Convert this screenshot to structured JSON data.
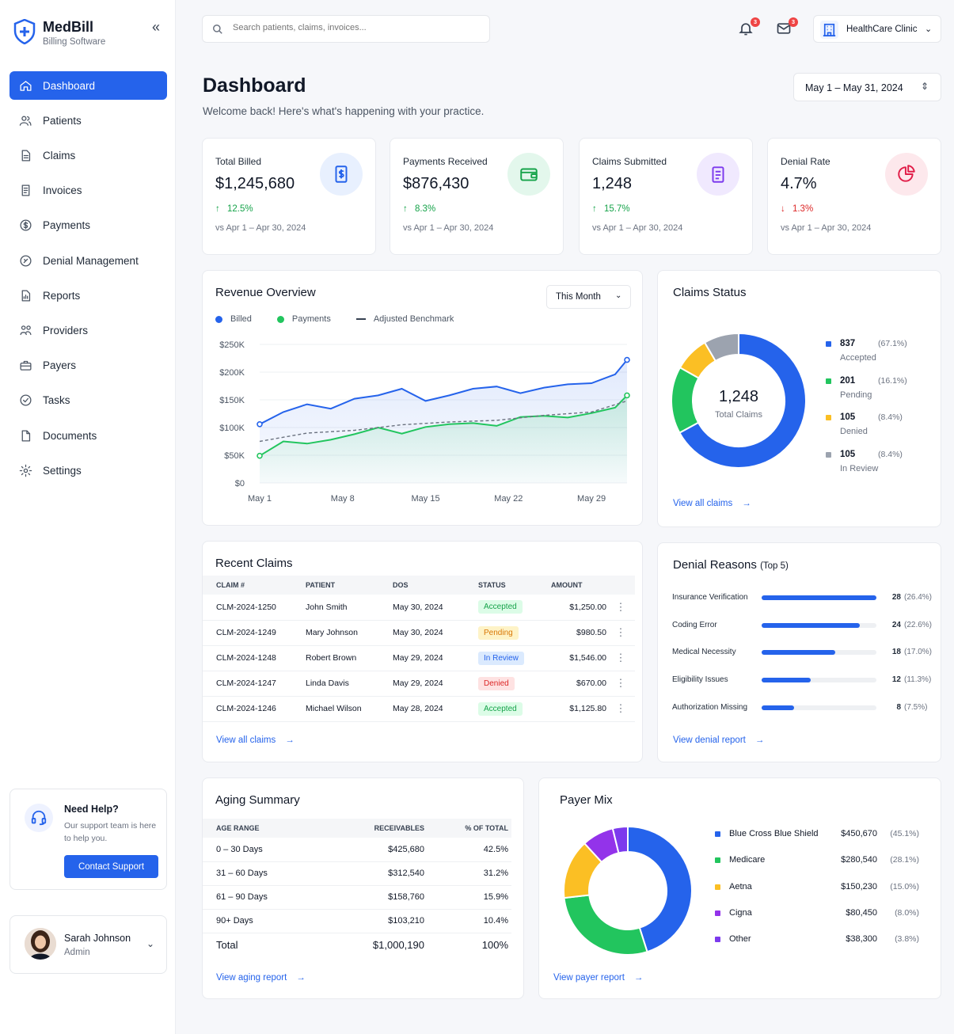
{
  "brand": {
    "name": "MedBill",
    "subtitle": "Billing Software"
  },
  "sidebar": {
    "items": [
      {
        "label": "Dashboard",
        "icon": "home-icon",
        "active": true
      },
      {
        "label": "Patients",
        "icon": "users-icon"
      },
      {
        "label": "Claims",
        "icon": "file-icon"
      },
      {
        "label": "Invoices",
        "icon": "invoice-icon"
      },
      {
        "label": "Payments",
        "icon": "dollar-icon"
      },
      {
        "label": "Denial Management",
        "icon": "x-circle-icon"
      },
      {
        "label": "Reports",
        "icon": "report-icon"
      },
      {
        "label": "Providers",
        "icon": "providers-icon"
      },
      {
        "label": "Payers",
        "icon": "briefcase-icon"
      },
      {
        "label": "Tasks",
        "icon": "check-circle-icon"
      },
      {
        "label": "Documents",
        "icon": "document-icon"
      },
      {
        "label": "Settings",
        "icon": "gear-icon"
      }
    ],
    "help": {
      "title": "Need Help?",
      "text": "Our support team is here to help you.",
      "button": "Contact Support"
    },
    "user": {
      "name": "Sarah Johnson",
      "role": "Admin"
    }
  },
  "topbar": {
    "search_placeholder": "Search patients, claims, invoices...",
    "notifications_count": "3",
    "messages_count": "3",
    "clinic": "HealthCare Clinic"
  },
  "header": {
    "title": "Dashboard",
    "subtitle": "Welcome back! Here's what's happening with your practice.",
    "date_range": "May 1 – May 31, 2024"
  },
  "kpis": [
    {
      "label": "Total Billed",
      "value": "$1,245,680",
      "delta": "12.5%",
      "direction": "up",
      "comparison": "vs Apr 1 – Apr 30, 2024",
      "color": "#2563eb",
      "bg": "#e8f0fe",
      "icon": "dollar-doc-icon"
    },
    {
      "label": "Payments Received",
      "value": "$876,430",
      "delta": "8.3%",
      "direction": "up",
      "comparison": "vs Apr 1 – Apr 30, 2024",
      "color": "#16a34a",
      "bg": "#e3f7ec",
      "icon": "wallet-icon"
    },
    {
      "label": "Claims Submitted",
      "value": "1,248",
      "delta": "15.7%",
      "direction": "up",
      "comparison": "vs Apr 1 – Apr 30, 2024",
      "color": "#7c3aed",
      "bg": "#f0e9fe",
      "icon": "clipboard-icon"
    },
    {
      "label": "Denial Rate",
      "value": "4.7%",
      "delta": "1.3%",
      "direction": "down",
      "comparison": "vs Apr 1 – Apr 30, 2024",
      "color": "#e11d48",
      "bg": "#fde8ec",
      "icon": "pie-icon"
    }
  ],
  "revenue": {
    "title": "Revenue Overview",
    "period": "This Month",
    "legend": {
      "billed": "Billed",
      "payments": "Payments",
      "benchmark": "Adjusted Benchmark"
    },
    "chart_data": {
      "type": "line",
      "ylim": [
        0,
        250000
      ],
      "y_ticks": [
        "$0",
        "$50K",
        "$100K",
        "$150K",
        "$200K",
        "$250K"
      ],
      "x_ticks": [
        "May 1",
        "May 8",
        "May 15",
        "May 22",
        "May 29"
      ],
      "x_tick_days": [
        1,
        8,
        15,
        22,
        29
      ],
      "x_range": [
        1,
        32
      ],
      "series": [
        {
          "name": "Billed",
          "color": "#2563eb",
          "x": [
            1,
            3,
            5,
            7,
            9,
            11,
            13,
            15,
            17,
            19,
            21,
            23,
            25,
            27,
            29,
            31,
            32
          ],
          "values": [
            106000,
            128000,
            142000,
            134000,
            152000,
            158000,
            170000,
            148000,
            158000,
            170000,
            174000,
            162000,
            172000,
            178000,
            180000,
            196000,
            222000
          ]
        },
        {
          "name": "Payments",
          "color": "#22c55e",
          "x": [
            1,
            3,
            5,
            7,
            9,
            11,
            13,
            15,
            17,
            19,
            21,
            23,
            25,
            27,
            29,
            31,
            32
          ],
          "values": [
            49000,
            75000,
            71000,
            78000,
            88000,
            100000,
            89000,
            101000,
            106000,
            108000,
            103000,
            119000,
            121000,
            118000,
            126000,
            136000,
            158000
          ]
        },
        {
          "name": "Adjusted Benchmark",
          "color": "#6b7280",
          "dashed": true,
          "x": [
            1,
            5,
            9,
            13,
            17,
            21,
            25,
            29,
            32
          ],
          "values": [
            75000,
            90000,
            95000,
            105000,
            110000,
            113000,
            122000,
            128000,
            148000
          ]
        }
      ]
    }
  },
  "claims_status": {
    "title": "Claims Status",
    "total": "1,248",
    "total_label": "Total Claims",
    "link": "View all claims",
    "chart_data": {
      "type": "pie",
      "segments": [
        {
          "label": "Accepted",
          "count": "837",
          "pct": "(67.1%)",
          "value": 837,
          "color": "#2563eb"
        },
        {
          "label": "Pending",
          "count": "201",
          "pct": "(16.1%)",
          "value": 201,
          "color": "#22c55e"
        },
        {
          "label": "Denied",
          "count": "105",
          "pct": "(8.4%)",
          "value": 105,
          "color": "#fbbf24"
        },
        {
          "label": "In Review",
          "count": "105",
          "pct": "(8.4%)",
          "value": 105,
          "color": "#9ca3af"
        }
      ]
    }
  },
  "recent_claims": {
    "title": "Recent Claims",
    "columns": [
      "CLAIM #",
      "PATIENT",
      "DOS",
      "STATUS",
      "AMOUNT"
    ],
    "rows": [
      {
        "claim": "CLM-2024-1250",
        "patient": "John Smith",
        "dos": "May 30, 2024",
        "status": "Accepted",
        "amount": "$1,250.00"
      },
      {
        "claim": "CLM-2024-1249",
        "patient": "Mary Johnson",
        "dos": "May 30, 2024",
        "status": "Pending",
        "amount": "$980.50"
      },
      {
        "claim": "CLM-2024-1248",
        "patient": "Robert Brown",
        "dos": "May 29, 2024",
        "status": "In Review",
        "amount": "$1,546.00"
      },
      {
        "claim": "CLM-2024-1247",
        "patient": "Linda Davis",
        "dos": "May 29, 2024",
        "status": "Denied",
        "amount": "$670.00"
      },
      {
        "claim": "CLM-2024-1246",
        "patient": "Michael Wilson",
        "dos": "May 28, 2024",
        "status": "Accepted",
        "amount": "$1,125.80"
      }
    ],
    "link": "View all claims"
  },
  "denial_reasons": {
    "title": "Denial Reasons",
    "title_suffix": "(Top 5)",
    "link": "View denial report",
    "chart_data": {
      "type": "bar",
      "max": 28,
      "categories": [
        "Insurance Verification",
        "Coding Error",
        "Medical Necessity",
        "Eligibility Issues",
        "Authorization Missing"
      ],
      "values": [
        28,
        24,
        18,
        12,
        8
      ],
      "labels": [
        "28",
        "24",
        "18",
        "12",
        "8"
      ],
      "pcts": [
        "(26.4%)",
        "(22.6%)",
        "(17.0%)",
        "(11.3%)",
        "(7.5%)"
      ]
    }
  },
  "aging": {
    "title": "Aging Summary",
    "columns": [
      "AGE RANGE",
      "RECEIVABLES",
      "% OF TOTAL"
    ],
    "rows": [
      {
        "range": "0 – 30 Days",
        "amount": "$425,680",
        "pct": "42.5%"
      },
      {
        "range": "31 – 60 Days",
        "amount": "$312,540",
        "pct": "31.2%"
      },
      {
        "range": "61 – 90 Days",
        "amount": "$158,760",
        "pct": "15.9%"
      },
      {
        "range": "90+ Days",
        "amount": "$103,210",
        "pct": "10.4%"
      }
    ],
    "total": {
      "label": "Total",
      "amount": "$1,000,190",
      "pct": "100%"
    },
    "link": "View aging report"
  },
  "payer_mix": {
    "title": "Payer Mix",
    "link": "View payer report",
    "chart_data": {
      "type": "pie",
      "segments": [
        {
          "label": "Blue Cross Blue Shield",
          "amount": "$450,670",
          "pct": "(45.1%)",
          "value": 45.1,
          "color": "#2563eb"
        },
        {
          "label": "Medicare",
          "amount": "$280,540",
          "pct": "(28.1%)",
          "value": 28.1,
          "color": "#22c55e"
        },
        {
          "label": "Aetna",
          "amount": "$150,230",
          "pct": "(15.0%)",
          "value": 15.0,
          "color": "#fbbf24"
        },
        {
          "label": "Cigna",
          "amount": "$80,450",
          "pct": "(8.0%)",
          "value": 8.0,
          "color": "#9333ea"
        },
        {
          "label": "Other",
          "amount": "$38,300",
          "pct": "(3.8%)",
          "value": 3.8,
          "color": "#7c3aed"
        }
      ]
    }
  }
}
